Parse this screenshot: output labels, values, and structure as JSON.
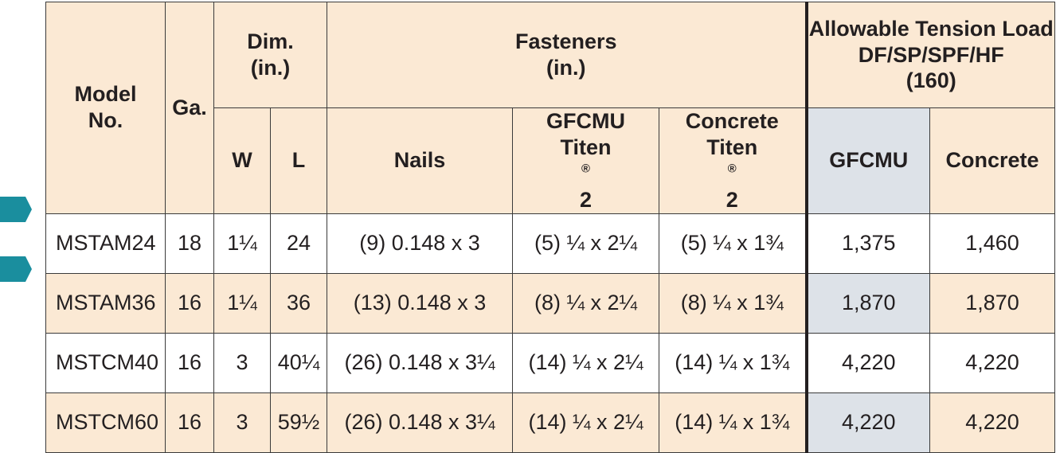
{
  "markers": [
    {
      "row": 0,
      "color": "#1a8e9e"
    },
    {
      "row": 1,
      "color": "#1a8e9e"
    }
  ],
  "header": {
    "model": [
      "Model",
      "No."
    ],
    "ga": "Ga.",
    "dim": [
      "Dim.",
      "(in.)"
    ],
    "fasteners": [
      "Fasteners",
      "(in.)"
    ],
    "load": [
      "Allowable Tension Load",
      "DF/SP/SPF/HF",
      "(160)"
    ],
    "w": "W",
    "l": "L",
    "nails": "Nails",
    "gfcmu_titen": [
      "GFCMU",
      "Titen",
      "2"
    ],
    "concrete_titen": [
      "Concrete",
      "Titen",
      "2"
    ],
    "registered": "®",
    "gfcmu": "GFCMU",
    "concrete": "Concrete"
  },
  "rows": [
    {
      "model": "MSTAM24",
      "ga": "18",
      "w": "1¼",
      "l": "24",
      "nails": "(9) 0.148 x 3",
      "gfcmu_titen": "(5) ¼ x 2¼",
      "concrete_titen": "(5) ¼ x 1¾",
      "gfcmu": "1,375",
      "concrete": "1,460"
    },
    {
      "model": "MSTAM36",
      "ga": "16",
      "w": "1¼",
      "l": "36",
      "nails": "(13) 0.148 x 3",
      "gfcmu_titen": "(8) ¼ x 2¼",
      "concrete_titen": "(8) ¼ x 1¾",
      "gfcmu": "1,870",
      "concrete": "1,870"
    },
    {
      "model": "MSTCM40",
      "ga": "16",
      "w": "3",
      "l": "40¼",
      "nails": "(26) 0.148 x 3¼",
      "gfcmu_titen": "(14) ¼ x 2¼",
      "concrete_titen": "(14) ¼ x 1¾",
      "gfcmu": "4,220",
      "concrete": "4,220"
    },
    {
      "model": "MSTCM60",
      "ga": "16",
      "w": "3",
      "l": "59½",
      "nails": "(26) 0.148 x 3¼",
      "gfcmu_titen": "(14) ¼ x 2¼",
      "concrete_titen": "(14) ¼ x 1¾",
      "gfcmu": "4,220",
      "concrete": "4,220"
    }
  ]
}
